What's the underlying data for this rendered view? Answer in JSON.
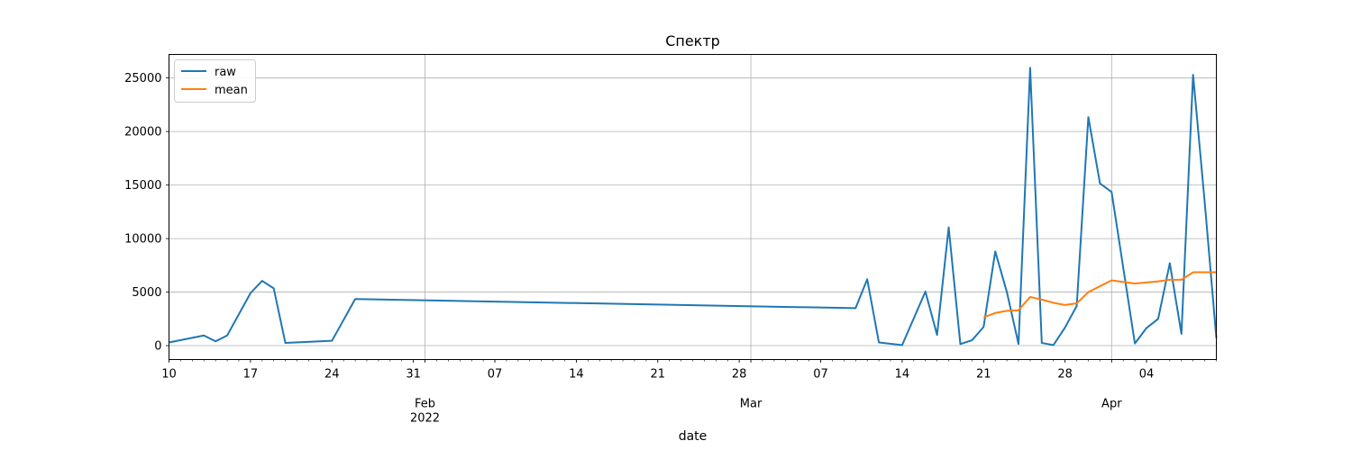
{
  "chart_data": {
    "type": "line",
    "title": "Спектр",
    "xlabel": "date",
    "ylabel": "",
    "xlim": [
      "2022-01-10",
      "2022-04-10"
    ],
    "ylim": [
      -1300,
      27200
    ],
    "grid": true,
    "legend_position": "top-left",
    "y_ticks": [
      0,
      5000,
      10000,
      15000,
      20000,
      25000
    ],
    "x_major_ticks": [
      {
        "date": "2022-02-01",
        "label": "Feb",
        "sublabel": "2022"
      },
      {
        "date": "2022-03-01",
        "label": "Mar",
        "sublabel": ""
      },
      {
        "date": "2022-04-01",
        "label": "Apr",
        "sublabel": ""
      }
    ],
    "x_minor_labels": [
      {
        "date": "2022-01-10",
        "label": "10"
      },
      {
        "date": "2022-01-17",
        "label": "17"
      },
      {
        "date": "2022-01-24",
        "label": "24"
      },
      {
        "date": "2022-01-31",
        "label": "31"
      },
      {
        "date": "2022-02-07",
        "label": "07"
      },
      {
        "date": "2022-02-14",
        "label": "14"
      },
      {
        "date": "2022-02-21",
        "label": "21"
      },
      {
        "date": "2022-02-28",
        "label": "28"
      },
      {
        "date": "2022-03-07",
        "label": "07"
      },
      {
        "date": "2022-03-14",
        "label": "14"
      },
      {
        "date": "2022-03-21",
        "label": "21"
      },
      {
        "date": "2022-03-28",
        "label": "28"
      },
      {
        "date": "2022-04-04",
        "label": "04"
      }
    ],
    "series": [
      {
        "name": "raw",
        "color": "#1f77b4",
        "points": [
          [
            "2022-01-10",
            300
          ],
          [
            "2022-01-13",
            950
          ],
          [
            "2022-01-14",
            400
          ],
          [
            "2022-01-15",
            950
          ],
          [
            "2022-01-17",
            4900
          ],
          [
            "2022-01-18",
            6050
          ],
          [
            "2022-01-19",
            5350
          ],
          [
            "2022-01-20",
            250
          ],
          [
            "2022-01-24",
            450
          ],
          [
            "2022-01-26",
            4350
          ],
          [
            "2022-03-10",
            3500
          ],
          [
            "2022-03-11",
            6200
          ],
          [
            "2022-03-12",
            300
          ],
          [
            "2022-03-14",
            50
          ],
          [
            "2022-03-16",
            5050
          ],
          [
            "2022-03-17",
            1000
          ],
          [
            "2022-03-18",
            11050
          ],
          [
            "2022-03-19",
            150
          ],
          [
            "2022-03-20",
            500
          ],
          [
            "2022-03-21",
            1750
          ],
          [
            "2022-03-22",
            8800
          ],
          [
            "2022-03-23",
            5000
          ],
          [
            "2022-03-24",
            150
          ],
          [
            "2022-03-25",
            25950
          ],
          [
            "2022-03-26",
            250
          ],
          [
            "2022-03-27",
            50
          ],
          [
            "2022-03-28",
            1700
          ],
          [
            "2022-03-29",
            3700
          ],
          [
            "2022-03-30",
            21350
          ],
          [
            "2022-03-31",
            15150
          ],
          [
            "2022-04-01",
            14350
          ],
          [
            "2022-04-03",
            200
          ],
          [
            "2022-04-04",
            1650
          ],
          [
            "2022-04-05",
            2500
          ],
          [
            "2022-04-06",
            7700
          ],
          [
            "2022-04-07",
            1100
          ],
          [
            "2022-04-08",
            25300
          ],
          [
            "2022-04-09",
            13400
          ],
          [
            "2022-04-10",
            700
          ]
        ]
      },
      {
        "name": "mean",
        "color": "#ff7f0e",
        "points": [
          [
            "2022-03-21",
            2650
          ],
          [
            "2022-03-22",
            3050
          ],
          [
            "2022-03-23",
            3250
          ],
          [
            "2022-03-24",
            3300
          ],
          [
            "2022-03-25",
            4550
          ],
          [
            "2022-03-26",
            4300
          ],
          [
            "2022-03-27",
            4000
          ],
          [
            "2022-03-28",
            3800
          ],
          [
            "2022-03-29",
            3950
          ],
          [
            "2022-03-30",
            5000
          ],
          [
            "2022-04-01",
            6100
          ],
          [
            "2022-04-03",
            5800
          ],
          [
            "2022-04-05",
            6000
          ],
          [
            "2022-04-06",
            6150
          ],
          [
            "2022-04-07",
            6150
          ],
          [
            "2022-04-08",
            6850
          ],
          [
            "2022-04-10",
            6850
          ]
        ]
      }
    ]
  }
}
